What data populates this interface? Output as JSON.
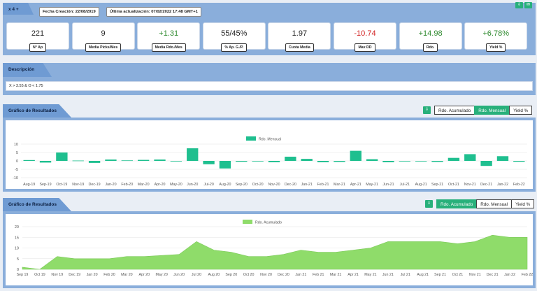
{
  "header": {
    "title": "x 4 +",
    "fecha_creacion": "Fecha Creación: 22/08/2019",
    "ultima_actualizacion": "Última actualización: 07/02/2022 17:48 GMT+1"
  },
  "stats": [
    {
      "value": "221",
      "label": "N° Ap",
      "tone": "normal"
    },
    {
      "value": "9",
      "label": "Media Picks/Mes",
      "tone": "normal"
    },
    {
      "value": "+1.31",
      "label": "Media Rdo./Mes",
      "tone": "pos"
    },
    {
      "value": "55/45%",
      "label": "% Ap. G./P.",
      "tone": "normal"
    },
    {
      "value": "1.97",
      "label": "Cuota Media",
      "tone": "normal"
    },
    {
      "value": "-10.74",
      "label": "Max DD",
      "tone": "neg"
    },
    {
      "value": "+14.98",
      "label": "Rdo.",
      "tone": "pos"
    },
    {
      "value": "+6.78%",
      "label": "Yield %",
      "tone": "pos"
    }
  ],
  "descripcion": {
    "title": "Descripción",
    "text": "X > 3.55 & O < 1.75"
  },
  "chart1": {
    "title": "Gráfico de Resultados",
    "buttons": [
      "Rdo. Acumulado",
      "Rdo. Mensual",
      "Yield %"
    ],
    "active": 1
  },
  "chart2": {
    "title": "Gráfico de Resultados",
    "buttons": [
      "Rdo. Acumulado",
      "Rdo. Mensual",
      "Yield %"
    ],
    "active": 0
  },
  "icons": {
    "download": "download-icon",
    "email": "email-icon"
  },
  "colors": {
    "accent": "#28b07b",
    "acumulado": "#8fdc6a",
    "mensual": "#1fbf8f",
    "positive": "#2f8a2f",
    "negative": "#d11f1f"
  },
  "chart_data": [
    {
      "type": "bar",
      "title": "",
      "legend": [
        "Rdo. Mensual"
      ],
      "categories": [
        "Aug-19",
        "Sep-19",
        "Oct-19",
        "Nov-19",
        "Dec-19",
        "Jan-20",
        "Feb-20",
        "Mar-20",
        "Apr-20",
        "May-20",
        "Jun-20",
        "Jul-20",
        "Aug-20",
        "Sep-20",
        "Oct-20",
        "Nov-20",
        "Dec-20",
        "Jan-21",
        "Feb-21",
        "Mar-21",
        "Apr-21",
        "May-21",
        "Jun-21",
        "Jul-21",
        "Aug-21",
        "Sep-21",
        "Oct-21",
        "Nov-21",
        "Dec-21",
        "Jan-22",
        "Feb-22"
      ],
      "series": [
        {
          "name": "Rdo. Mensual",
          "values": [
            0.5,
            -1,
            5,
            0.2,
            -1.2,
            0.8,
            0.3,
            0.6,
            0.8,
            -0.3,
            7.5,
            -2,
            -4.5,
            -0.5,
            -0.3,
            -0.8,
            2.5,
            1.2,
            -0.8,
            -0.6,
            6,
            1,
            -0.8,
            0,
            0,
            -0.6,
            1.8,
            4,
            -3,
            2.8,
            -0.5
          ]
        }
      ],
      "ylim": [
        -10,
        10
      ],
      "yticks": [
        -10,
        -5,
        0,
        5,
        10
      ],
      "grid": true,
      "legend_position": "top"
    },
    {
      "type": "area",
      "title": "",
      "legend": [
        "Rdo. Acumulado"
      ],
      "x": [
        "Sep 19",
        "Oct 19",
        "Nov 19",
        "Dec 19",
        "Jan 20",
        "Feb 20",
        "Mar 20",
        "Apr 20",
        "May 20",
        "Jun 20",
        "Jul 20",
        "Aug 20",
        "Sep 20",
        "Oct 20",
        "Nov 20",
        "Dec 20",
        "Jan 21",
        "Feb 21",
        "Mar 21",
        "Apr 21",
        "May 21",
        "Jun 21",
        "Jul 21",
        "Aug 21",
        "Sep 21",
        "Oct 21",
        "Nov 21",
        "Dec 21",
        "Jan 22",
        "Feb 22"
      ],
      "series": [
        {
          "name": "Rdo. Acumulado",
          "values": [
            1,
            0,
            6,
            5,
            5,
            5,
            6,
            6,
            6.5,
            7,
            13,
            9,
            8,
            6,
            6,
            7,
            9,
            8,
            8,
            9,
            10,
            13,
            13,
            13,
            13,
            12,
            13,
            16,
            15,
            15
          ]
        }
      ],
      "ylim": [
        0,
        20
      ],
      "yticks": [
        0,
        5,
        10,
        15,
        20
      ],
      "grid": true,
      "legend_position": "top"
    }
  ]
}
